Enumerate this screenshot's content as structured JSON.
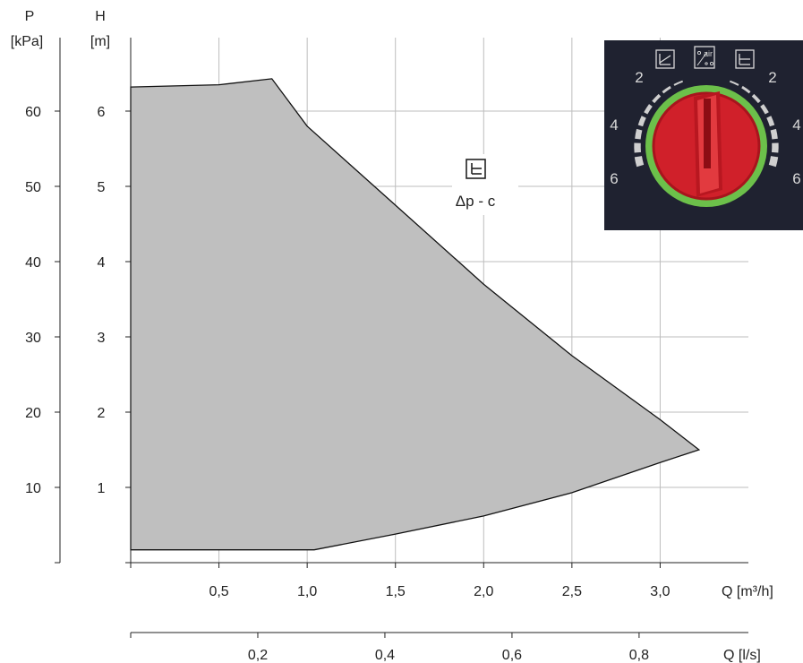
{
  "chart_data": {
    "type": "area",
    "title": "",
    "mode_label": "Δp - c",
    "mode_icon": "constant-pressure-icon",
    "axes": {
      "pressure": {
        "title_line1": "P",
        "title_line2": "[kPa]",
        "ticks": [
          10,
          20,
          30,
          40,
          50,
          60
        ]
      },
      "head": {
        "title_line1": "H",
        "title_line2": "[m]",
        "ticks": [
          1,
          2,
          3,
          4,
          5,
          6
        ],
        "ylim": [
          0,
          7.0
        ]
      },
      "flow_m3h": {
        "label": "Q [m³/h]",
        "ticks": [
          "0,5",
          "1,0",
          "1,5",
          "2,0",
          "2,5",
          "3,0"
        ],
        "tick_values": [
          0.5,
          1.0,
          1.5,
          2.0,
          2.5,
          3.0
        ],
        "xlim": [
          0,
          3.5
        ]
      },
      "flow_ls": {
        "label": "Q [l/s]",
        "ticks": [
          "0,2",
          "0,4",
          "0,6",
          "0,8"
        ],
        "tick_values": [
          0.2,
          0.4,
          0.6,
          0.8
        ],
        "xlim": [
          0,
          0.972
        ]
      }
    },
    "grid": true,
    "operating_range": {
      "upper_curve": [
        {
          "x": 0.0,
          "y": 6.32
        },
        {
          "x": 0.5,
          "y": 6.35
        },
        {
          "x": 0.8,
          "y": 6.43
        },
        {
          "x": 1.0,
          "y": 5.8
        },
        {
          "x": 1.5,
          "y": 4.75
        },
        {
          "x": 2.0,
          "y": 3.7
        },
        {
          "x": 2.5,
          "y": 2.75
        },
        {
          "x": 3.0,
          "y": 1.9
        },
        {
          "x": 3.22,
          "y": 1.5
        }
      ],
      "lower_curve": [
        {
          "x": 3.22,
          "y": 1.5
        },
        {
          "x": 3.0,
          "y": 1.33
        },
        {
          "x": 2.5,
          "y": 0.93
        },
        {
          "x": 2.0,
          "y": 0.62
        },
        {
          "x": 1.5,
          "y": 0.38
        },
        {
          "x": 1.04,
          "y": 0.17
        },
        {
          "x": 0.0,
          "y": 0.17
        }
      ]
    },
    "dial": {
      "top_icons": [
        "proportional-pressure-icon",
        "air-venting-icon",
        "constant-pressure-icon"
      ],
      "air_label": "air",
      "left_scale": [
        "2",
        "4",
        "6"
      ],
      "right_scale": [
        "2",
        "4",
        "6"
      ],
      "colors": {
        "panel": "#1f2230",
        "ring": "#6cc04a",
        "knob": "#d0202a",
        "knob_dark": "#9e111a"
      }
    },
    "colors": {
      "region_fill": "#bfbfbf",
      "grid": "#bdbdbd"
    }
  }
}
